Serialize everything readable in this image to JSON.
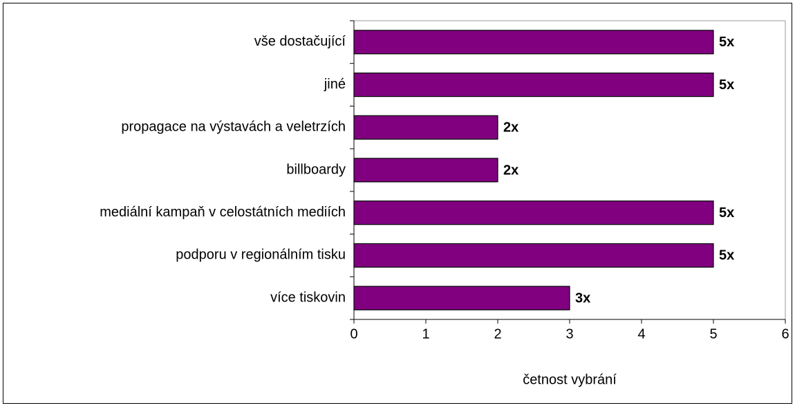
{
  "chart_data": {
    "type": "bar",
    "orientation": "horizontal",
    "categories": [
      "vše dostačující",
      "jiné",
      "propagace na výstavách a veletrzích",
      "billboardy",
      "mediální kampaň v celostátních mediích",
      "podporu v regionálním tisku",
      "více tiskovin"
    ],
    "values": [
      5,
      5,
      2,
      2,
      5,
      5,
      3
    ],
    "value_labels": [
      "5x",
      "5x",
      "2x",
      "2x",
      "5x",
      "5x",
      "3x"
    ],
    "color": "#800080",
    "xlabel": "četnost vybrání",
    "xlim": [
      0,
      6
    ],
    "xticks": [
      0,
      1,
      2,
      3,
      4,
      5,
      6
    ],
    "grid": false
  }
}
